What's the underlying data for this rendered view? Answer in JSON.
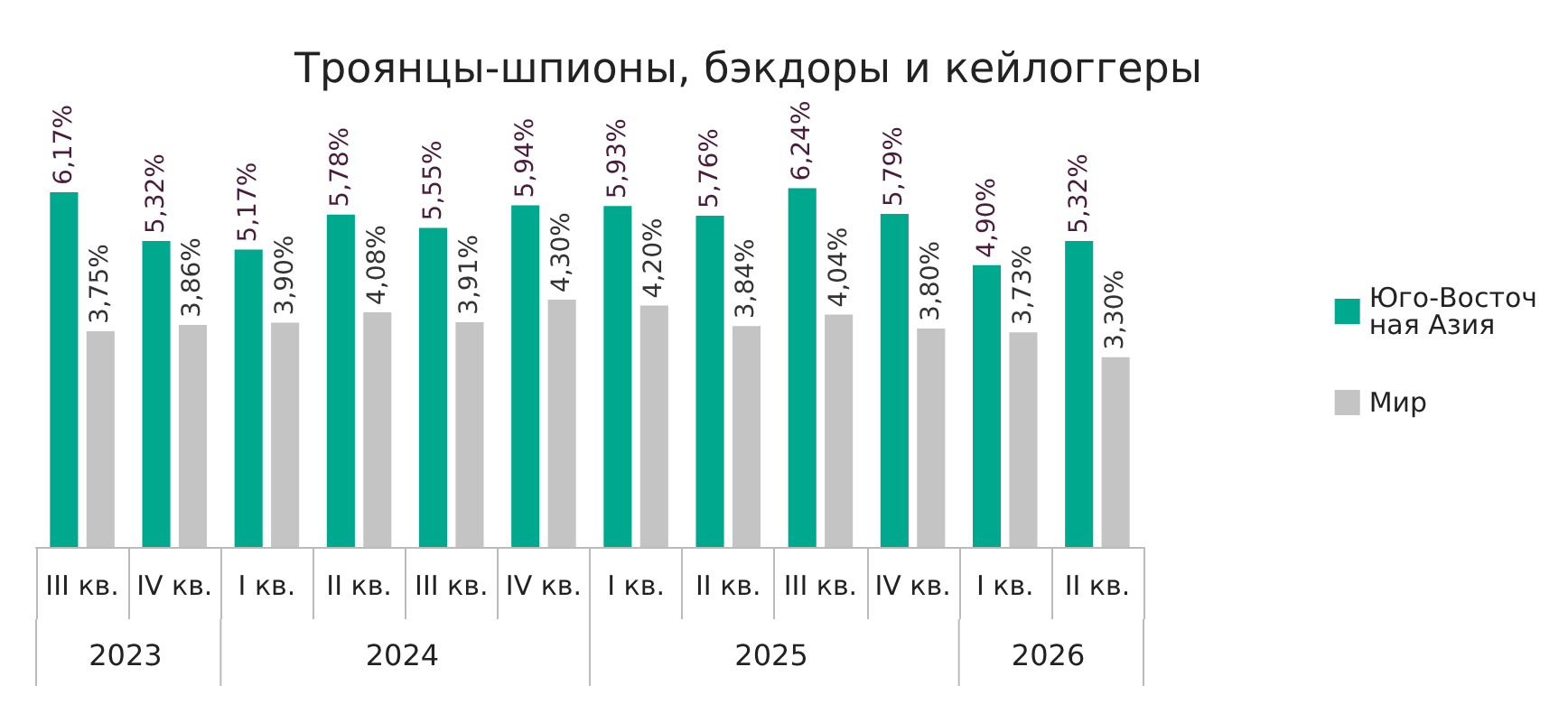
{
  "chart_data": {
    "type": "bar",
    "title": "Троянцы-шпионы, бэкдоры и кейлоггеры",
    "categories": [
      "III кв.",
      "IV кв.",
      "I кв.",
      "II кв.",
      "III кв.",
      "IV кв.",
      "I кв.",
      "II кв.",
      "III кв.",
      "IV кв.",
      "I кв.",
      "II кв."
    ],
    "series": [
      {
        "name": "Юго-Восточная Азия",
        "color": "#00a88e",
        "values": [
          6.17,
          5.32,
          5.17,
          5.78,
          5.55,
          5.94,
          5.93,
          5.76,
          6.24,
          5.79,
          4.9,
          5.32
        ],
        "value_labels": [
          "6,17%",
          "5,32%",
          "5,17%",
          "5,78%",
          "5,55%",
          "5,94%",
          "5,93%",
          "5,76%",
          "6,24%",
          "5,79%",
          "4,90%",
          "5,32%"
        ]
      },
      {
        "name": "Мир",
        "color": "#c4c4c4",
        "values": [
          3.75,
          3.86,
          3.9,
          4.08,
          3.91,
          4.3,
          4.2,
          3.84,
          4.04,
          3.8,
          3.73,
          3.3
        ],
        "value_labels": [
          "3,75%",
          "3,86%",
          "3,90%",
          "4,08%",
          "3,91%",
          "4,30%",
          "4,20%",
          "3,84%",
          "4,04%",
          "3,80%",
          "3,73%",
          "3,30%"
        ]
      }
    ],
    "annotations": [
      "2023",
      "2024",
      "2025",
      "2026"
    ],
    "legend": "right",
    "grid": false
  }
}
